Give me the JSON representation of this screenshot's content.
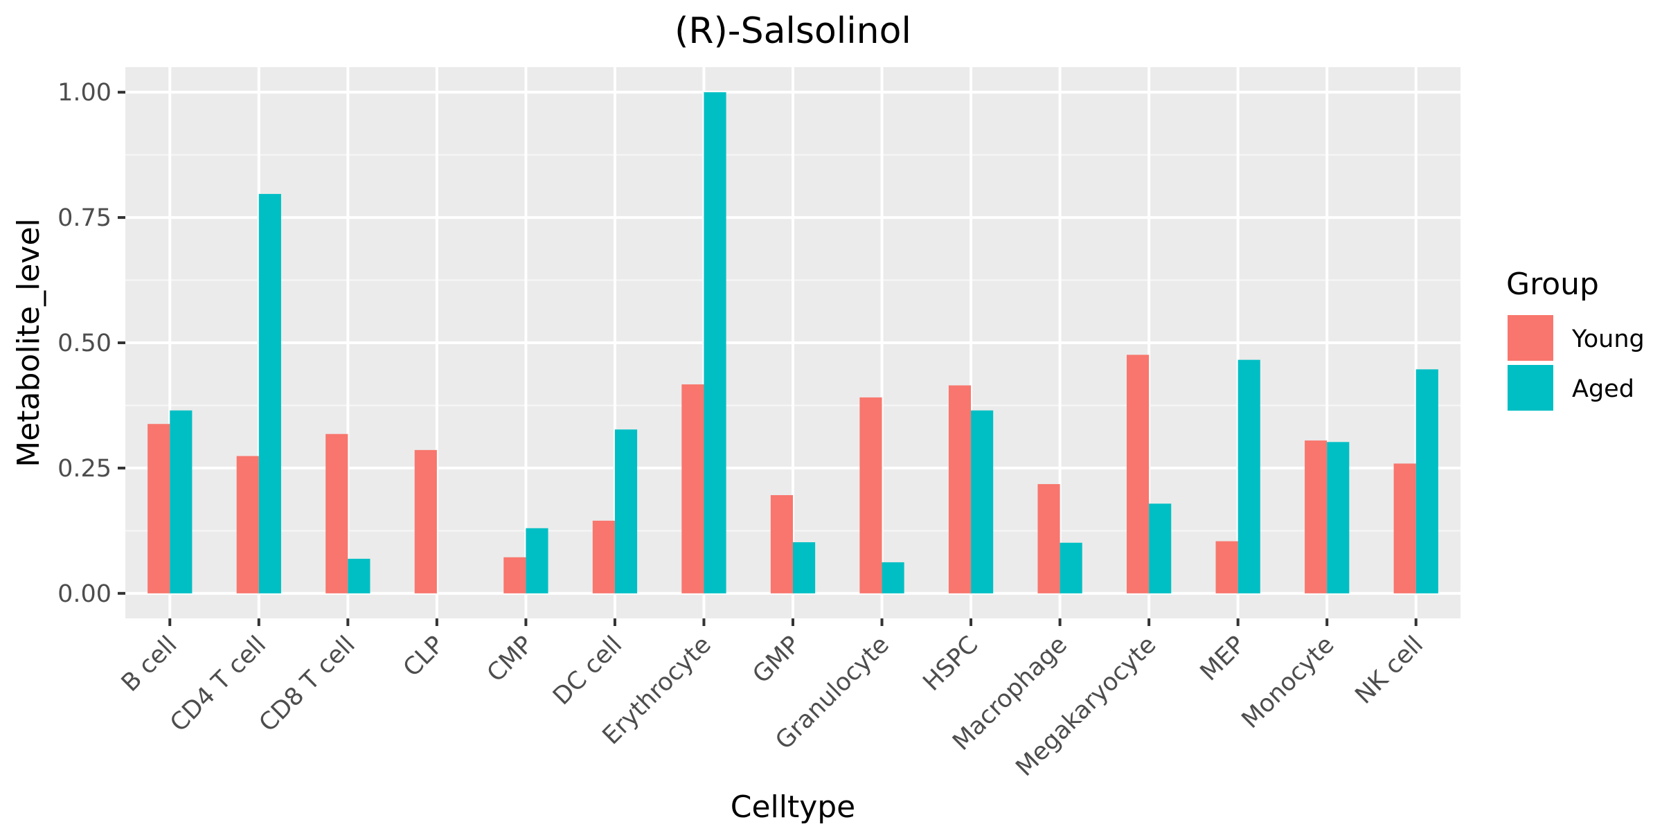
{
  "chart_data": {
    "type": "bar",
    "title": "(R)-Salsolinol",
    "xlabel": "Celltype",
    "ylabel": "Metabolite_level",
    "ylim": [
      -0.05,
      1.05
    ],
    "yticks": [
      0.0,
      0.25,
      0.5,
      0.75,
      1.0
    ],
    "ytick_labels": [
      "0.00",
      "0.25",
      "0.50",
      "0.75",
      "1.00"
    ],
    "grid": true,
    "legend": {
      "title": "Group",
      "placement": "right"
    },
    "categories": [
      "B cell",
      "CD4 T cell",
      "CD8 T cell",
      "CLP",
      "CMP",
      "DC cell",
      "Erythrocyte",
      "GMP",
      "Granulocyte",
      "HSPC",
      "Macrophage",
      "Megakaryocyte",
      "MEP",
      "Monocyte",
      "NK cell"
    ],
    "series": [
      {
        "name": "Young",
        "color": "#F8766D",
        "values": [
          0.338,
          0.274,
          0.318,
          0.286,
          0.072,
          0.145,
          0.417,
          0.196,
          0.391,
          0.415,
          0.218,
          0.476,
          0.104,
          0.305,
          0.259
        ]
      },
      {
        "name": "Aged",
        "color": "#00BFC4",
        "values": [
          0.365,
          0.797,
          0.069,
          0.0,
          0.13,
          0.327,
          1.0,
          0.102,
          0.062,
          0.365,
          0.101,
          0.179,
          0.466,
          0.302,
          0.447
        ]
      }
    ]
  }
}
